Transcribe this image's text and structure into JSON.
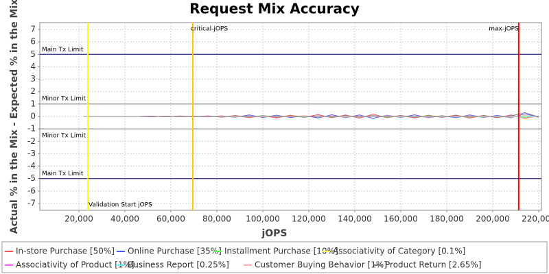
{
  "chart_data": {
    "type": "line",
    "title": "Request Mix Accuracy",
    "xlabel": "jOPS",
    "ylabel": "Actual % in the Mix - Expected % in the Mix",
    "xlim": [
      3000,
      221200
    ],
    "ylim": [
      -7.55,
      7.55
    ],
    "xticks": [
      {
        "value": 20000,
        "label": "20,000"
      },
      {
        "value": 40000,
        "label": "40,000"
      },
      {
        "value": 60000,
        "label": "60,000"
      },
      {
        "value": 80000,
        "label": "80,000"
      },
      {
        "value": 100000,
        "label": "100,000"
      },
      {
        "value": 120000,
        "label": "120,000"
      },
      {
        "value": 140000,
        "label": "140,000"
      },
      {
        "value": 160000,
        "label": "160,000"
      },
      {
        "value": 180000,
        "label": "180,000"
      },
      {
        "value": 200000,
        "label": "200,000"
      },
      {
        "value": 220000,
        "label": "220,000"
      }
    ],
    "yticks": [
      -7,
      -6,
      -5,
      -4,
      -3,
      -2,
      -1,
      0,
      1,
      2,
      3,
      4,
      5,
      6,
      7
    ],
    "grid": true,
    "legend": "bottom",
    "hlines": [
      {
        "value": 5,
        "label": "Main Tx Limit",
        "color": "#000066"
      },
      {
        "value": 1,
        "label": "Minor Tx Limit",
        "color": "#808080"
      },
      {
        "value": -1,
        "label": "Minor Tx Limit",
        "color": "#808080"
      },
      {
        "value": -5,
        "label": "Main Tx Limit",
        "color": "#000066"
      }
    ],
    "vlines": [
      {
        "value": 23880,
        "label": "Validation Start jOPS",
        "color": "#ffff00"
      },
      {
        "value": 69550,
        "label": "critical-jOPS",
        "color": "#ffc800"
      },
      {
        "value": 211300,
        "label": "max-jOPS",
        "color": "#ff0000"
      }
    ],
    "x": [
      22000,
      28000,
      34000,
      40000,
      46000,
      52000,
      58000,
      64000,
      70000,
      76000,
      82000,
      88000,
      94000,
      100000,
      106000,
      112000,
      118000,
      124000,
      130000,
      136000,
      142000,
      148000,
      154000,
      160000,
      166000,
      172000,
      178000,
      184000,
      190000,
      196000,
      202000,
      208000,
      214000,
      220000
    ],
    "series": [
      {
        "name": "In-store Purchase [50%]",
        "color": "#ff5555",
        "values": [
          0,
          0,
          0,
          0,
          0,
          0.02,
          -0.03,
          0.04,
          -0.02,
          0.05,
          -0.06,
          0.08,
          -0.1,
          0.07,
          -0.12,
          0.1,
          -0.08,
          0.15,
          -0.1,
          0.12,
          -0.14,
          0.18,
          -0.1,
          0.09,
          -0.12,
          0.1,
          -0.08,
          0.11,
          -0.13,
          0.09,
          -0.1,
          0.12,
          -0.15,
          0.05
        ]
      },
      {
        "name": "Online Purchase [35%]",
        "color": "#5555ff",
        "values": [
          0,
          0,
          0,
          0,
          0,
          -0.02,
          0.03,
          -0.03,
          0.02,
          -0.04,
          0.05,
          -0.07,
          0.12,
          -0.08,
          0.1,
          -0.09,
          0.06,
          -0.12,
          0.14,
          -0.1,
          0.12,
          -0.15,
          0.1,
          -0.08,
          0.13,
          -0.1,
          0.07,
          -0.1,
          0.12,
          -0.08,
          0.09,
          -0.11,
          0.22,
          -0.06
        ]
      },
      {
        "name": "Installment Purchase [10%]",
        "color": "#55ff55",
        "values": [
          0,
          0,
          0,
          0,
          0,
          0.01,
          -0.01,
          0.02,
          -0.02,
          0.03,
          -0.03,
          0.04,
          -0.05,
          0.06,
          -0.04,
          0.05,
          -0.06,
          0.04,
          -0.05,
          0.06,
          -0.05,
          0.04,
          -0.06,
          0.05,
          -0.04,
          0.06,
          -0.05,
          0.04,
          -0.06,
          0.05,
          -0.04,
          0.05,
          -0.08,
          0.03
        ]
      },
      {
        "name": "Associativity of Category [0.1%]",
        "color": "#ffff55",
        "values": [
          0,
          0,
          0,
          0,
          0,
          0,
          0.01,
          -0.01,
          0.01,
          -0.01,
          0.02,
          -0.02,
          0.02,
          -0.03,
          0.02,
          -0.02,
          0.03,
          -0.02,
          0.02,
          -0.03,
          0.03,
          -0.02,
          0.02,
          -0.03,
          0.02,
          -0.02,
          0.03,
          -0.02,
          0.02,
          -0.03,
          0.02,
          -0.02,
          0.03,
          -0.01
        ]
      },
      {
        "name": "Associativity of Product [1%]",
        "color": "#ff55ff",
        "values": [
          0,
          0,
          0,
          0,
          0,
          0.01,
          -0.01,
          0.02,
          -0.01,
          0.02,
          -0.02,
          0.03,
          -0.02,
          0.03,
          -0.03,
          0.02,
          -0.03,
          0.04,
          -0.02,
          0.03,
          -0.04,
          0.03,
          -0.02,
          0.04,
          -0.03,
          0.02,
          -0.04,
          0.03,
          -0.02,
          0.03,
          -0.03,
          0.04,
          -0.05,
          0.02
        ]
      },
      {
        "name": "Business Report [0.25%]",
        "color": "#55ffff",
        "values": [
          0,
          0,
          0,
          0,
          0,
          0,
          -0.01,
          0.01,
          -0.01,
          0.02,
          -0.01,
          0.02,
          -0.02,
          0.01,
          -0.02,
          0.03,
          -0.02,
          0.02,
          -0.03,
          0.02,
          -0.02,
          0.03,
          -0.02,
          0.02,
          -0.03,
          0.02,
          -0.02,
          0.03,
          -0.02,
          0.02,
          -0.03,
          0.02,
          -0.04,
          0.01
        ]
      },
      {
        "name": "Customer Buying Behavior [1%]",
        "color": "#ffafaf",
        "values": [
          0,
          0,
          0,
          0,
          0,
          -0.01,
          0.02,
          -0.02,
          0.03,
          -0.02,
          0.03,
          -0.04,
          0.05,
          -0.03,
          0.04,
          -0.05,
          0.06,
          -0.04,
          0.05,
          -0.06,
          0.05,
          -0.04,
          0.06,
          -0.05,
          0.04,
          -0.06,
          0.05,
          -0.04,
          0.06,
          -0.05,
          0.04,
          -0.06,
          0.08,
          -0.03
        ]
      },
      {
        "name": "Product Return [2.65%]",
        "color": "#808080",
        "values": [
          0,
          0,
          0,
          0,
          0,
          0.01,
          -0.02,
          0.02,
          -0.03,
          0.03,
          -0.04,
          0.05,
          -0.04,
          0.06,
          -0.05,
          0.04,
          -0.06,
          0.05,
          -0.04,
          0.06,
          -0.05,
          0.07,
          -0.05,
          0.06,
          -0.07,
          0.05,
          -0.06,
          0.07,
          -0.05,
          0.06,
          -0.07,
          0.05,
          0.3,
          -0.04
        ]
      }
    ]
  }
}
